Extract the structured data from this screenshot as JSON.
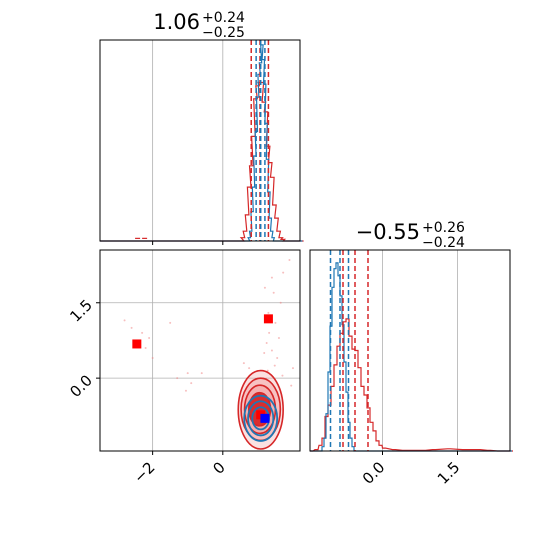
{
  "chart_data": {
    "type": "corner",
    "grid": true,
    "colors": {
      "red": "#d62728",
      "blue": "#1f77b4",
      "red_fill": "#f4a9a9",
      "red_pts": "#f08080",
      "marker_red": "#ff0000",
      "marker_blue": "#0000ff",
      "grid": "#b0b0b0"
    },
    "param1": {
      "title_main": "1.06",
      "title_plus": "+0.24",
      "title_minus": "−0.25",
      "range": [
        -3.5,
        2.2
      ],
      "ticks": [
        {
          "v": -2,
          "label": "−2"
        },
        {
          "v": 0,
          "label": "0"
        }
      ],
      "red_quantiles": [
        0.81,
        1.06,
        1.3
      ],
      "blue_quantiles": [
        0.95,
        1.08,
        1.2
      ],
      "red_hist": [
        [
          -3.5,
          0
        ],
        [
          0.5,
          0
        ],
        [
          0.52,
          0.02
        ],
        [
          0.58,
          0.06
        ],
        [
          0.64,
          0.16
        ],
        [
          0.7,
          0.33
        ],
        [
          0.76,
          0.46
        ],
        [
          0.82,
          0.64
        ],
        [
          0.88,
          0.87
        ],
        [
          0.94,
          0.95
        ],
        [
          1.0,
          0.97
        ],
        [
          1.06,
          0.97
        ],
        [
          1.12,
          0.85
        ],
        [
          1.18,
          0.79
        ],
        [
          1.24,
          0.58
        ],
        [
          1.3,
          0.48
        ],
        [
          1.36,
          0.39
        ],
        [
          1.42,
          0.22
        ],
        [
          1.48,
          0.14
        ],
        [
          1.54,
          0.06
        ],
        [
          1.6,
          0.02
        ],
        [
          1.66,
          0.01
        ],
        [
          1.72,
          0
        ],
        [
          2.2,
          0
        ]
      ],
      "red_hist_outliers": [
        [
          -2.5,
          0.01
        ],
        [
          -2.3,
          0.01
        ]
      ],
      "blue_hist": [
        [
          -3.5,
          0
        ],
        [
          0.7,
          0
        ],
        [
          0.72,
          0.02
        ],
        [
          0.76,
          0.06
        ],
        [
          0.8,
          0.18
        ],
        [
          0.84,
          0.33
        ],
        [
          0.88,
          0.52
        ],
        [
          0.92,
          0.67
        ],
        [
          0.96,
          0.88
        ],
        [
          1.0,
          1.02
        ],
        [
          1.04,
          1.09
        ],
        [
          1.08,
          1.2
        ],
        [
          1.12,
          1.11
        ],
        [
          1.16,
          0.96
        ],
        [
          1.2,
          0.72
        ],
        [
          1.24,
          0.5
        ],
        [
          1.28,
          0.3
        ],
        [
          1.32,
          0.14
        ],
        [
          1.36,
          0.06
        ],
        [
          1.4,
          0.02
        ],
        [
          1.44,
          0
        ],
        [
          2.2,
          0
        ]
      ]
    },
    "param2": {
      "title_main": "−0.55",
      "title_plus": "+0.26",
      "title_minus": "−0.24",
      "range": [
        -1.45,
        2.55
      ],
      "ticks": [
        {
          "v": 0,
          "label": "0.0"
        },
        {
          "v": 1.5,
          "label": "1.5"
        }
      ],
      "red_quantiles": [
        -0.79,
        -0.55,
        -0.29
      ],
      "blue_quantiles": [
        -1.04,
        -0.85,
        -0.68
      ],
      "red_hist": [
        [
          -1.45,
          0
        ],
        [
          -1.35,
          0.01
        ],
        [
          -1.27,
          0.04
        ],
        [
          -1.21,
          0.09
        ],
        [
          -1.15,
          0.24
        ],
        [
          -1.09,
          0.32
        ],
        [
          -1.03,
          0.45
        ],
        [
          -0.97,
          0.6
        ],
        [
          -0.91,
          0.73
        ],
        [
          -0.85,
          0.82
        ],
        [
          -0.79,
          0.9
        ],
        [
          -0.73,
          0.92
        ],
        [
          -0.67,
          0.8
        ],
        [
          -0.61,
          0.71
        ],
        [
          -0.55,
          0.7
        ],
        [
          -0.49,
          0.58
        ],
        [
          -0.43,
          0.45
        ],
        [
          -0.37,
          0.39
        ],
        [
          -0.31,
          0.3
        ],
        [
          -0.25,
          0.2
        ],
        [
          -0.19,
          0.14
        ],
        [
          -0.13,
          0.07
        ],
        [
          -0.07,
          0.04
        ],
        [
          0.0,
          0.02
        ],
        [
          0.2,
          0.01
        ],
        [
          0.4,
          0.005
        ],
        [
          0.6,
          0.005
        ],
        [
          0.8,
          0.005
        ],
        [
          1.0,
          0.01
        ],
        [
          1.3,
          0.015
        ],
        [
          1.6,
          0.01
        ],
        [
          1.9,
          0.01
        ],
        [
          2.1,
          0.005
        ],
        [
          2.3,
          0
        ],
        [
          2.55,
          0
        ]
      ],
      "blue_hist": [
        [
          -1.45,
          0
        ],
        [
          -1.25,
          0
        ],
        [
          -1.21,
          0.03
        ],
        [
          -1.17,
          0.09
        ],
        [
          -1.13,
          0.26
        ],
        [
          -1.09,
          0.55
        ],
        [
          -1.05,
          0.87
        ],
        [
          -1.01,
          1.14
        ],
        [
          -0.97,
          1.27
        ],
        [
          -0.93,
          1.31
        ],
        [
          -0.89,
          1.22
        ],
        [
          -0.85,
          1.08
        ],
        [
          -0.81,
          0.88
        ],
        [
          -0.77,
          0.62
        ],
        [
          -0.73,
          0.41
        ],
        [
          -0.69,
          0.2
        ],
        [
          -0.65,
          0.09
        ],
        [
          -0.61,
          0.03
        ],
        [
          -0.57,
          0
        ],
        [
          2.55,
          0
        ]
      ]
    },
    "joint": {
      "xlim": [
        -3.5,
        2.2
      ],
      "ylim": [
        -1.45,
        2.55
      ],
      "red_contours": [
        {
          "cx": 1.08,
          "cy": -0.63,
          "rx": 0.64,
          "ry": 0.78
        },
        {
          "cx": 1.08,
          "cy": -0.62,
          "rx": 0.56,
          "ry": 0.62
        },
        {
          "cx": 1.06,
          "cy": -0.62,
          "rx": 0.44,
          "ry": 0.48
        },
        {
          "cx": 1.05,
          "cy": -0.62,
          "rx": 0.31,
          "ry": 0.33
        }
      ],
      "blue_contours": [
        {
          "cx": 1.08,
          "cy": -0.8,
          "rx": 0.47,
          "ry": 0.45
        },
        {
          "cx": 1.08,
          "cy": -0.8,
          "rx": 0.36,
          "ry": 0.34
        },
        {
          "cx": 1.08,
          "cy": -0.8,
          "rx": 0.24,
          "ry": 0.22
        }
      ],
      "scatter": [
        [
          1.4,
          2.0
        ],
        [
          1.2,
          1.8
        ],
        [
          1.65,
          1.5
        ],
        [
          1.3,
          1.3
        ],
        [
          1.5,
          1.1
        ],
        [
          1.25,
          0.7
        ],
        [
          1.4,
          0.55
        ],
        [
          1.55,
          0.4
        ],
        [
          1.32,
          0.9
        ],
        [
          1.18,
          0.5
        ],
        [
          1.48,
          0.25
        ],
        [
          1.6,
          0.8
        ],
        [
          1.7,
          0.05
        ],
        [
          1.28,
          0.15
        ],
        [
          1.45,
          1.7
        ],
        [
          1.72,
          2.1
        ],
        [
          1.9,
          2.35
        ],
        [
          -2.6,
          1.0
        ],
        [
          -2.3,
          0.9
        ],
        [
          -2.2,
          0.6
        ],
        [
          -2.8,
          1.15
        ],
        [
          -2.1,
          0.8
        ],
        [
          -1.5,
          1.1
        ],
        [
          -2.0,
          0.4
        ],
        [
          -1.0,
          0.1
        ],
        [
          -1.3,
          0.0
        ],
        [
          -0.6,
          0.1
        ],
        [
          -1.05,
          -0.25
        ],
        [
          0.6,
          0.3
        ],
        [
          0.75,
          0.2
        ],
        [
          2.0,
          0.2
        ],
        [
          1.95,
          -0.15
        ],
        [
          -0.9,
          -0.1
        ]
      ],
      "markers": [
        {
          "x": -2.45,
          "y": 0.68,
          "color": "red"
        },
        {
          "x": 1.3,
          "y": 1.18,
          "color": "red"
        },
        {
          "x": 1.08,
          "y": -0.73,
          "color": "red"
        },
        {
          "x": 1.2,
          "y": -0.8,
          "color": "blue"
        }
      ]
    }
  }
}
